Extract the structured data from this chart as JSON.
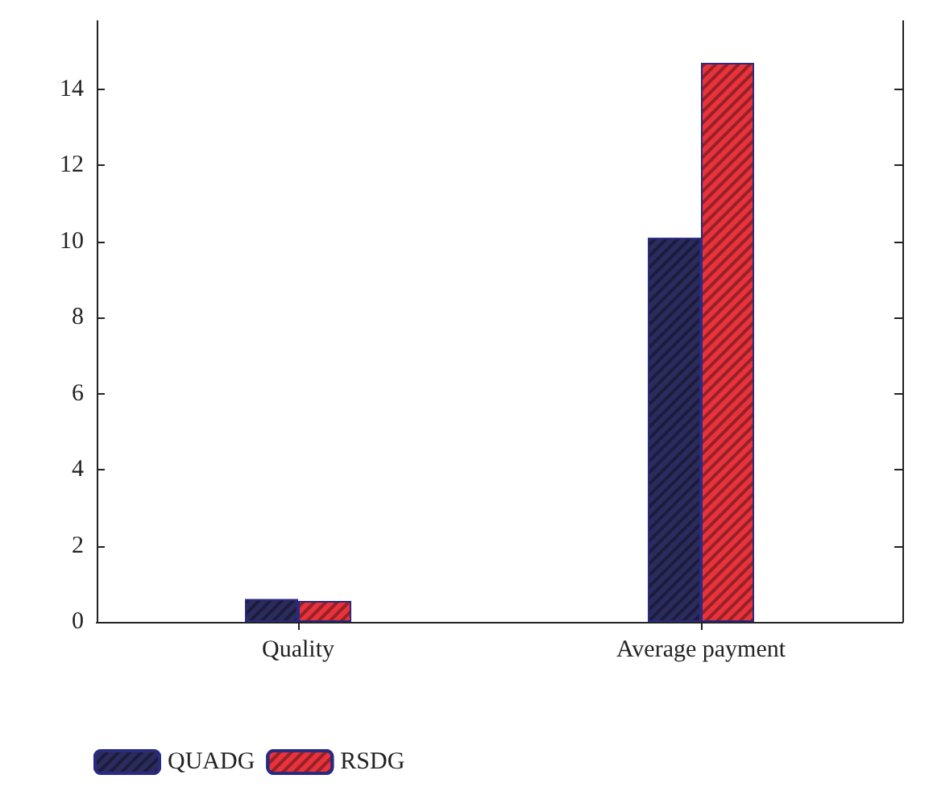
{
  "chart_data": {
    "type": "bar",
    "categories": [
      "Quality",
      "Average payment"
    ],
    "series": [
      {
        "name": "QUADG",
        "color": "#2b2b5e",
        "values": [
          0.6,
          10.1
        ]
      },
      {
        "name": "RSDG",
        "color": "#e8323c",
        "values": [
          0.55,
          14.7
        ]
      }
    ],
    "ylim": [
      0,
      15.8
    ],
    "yticks": [
      0,
      2,
      4,
      6,
      8,
      10,
      12,
      14
    ],
    "grid": false,
    "legend": "bottom left"
  }
}
